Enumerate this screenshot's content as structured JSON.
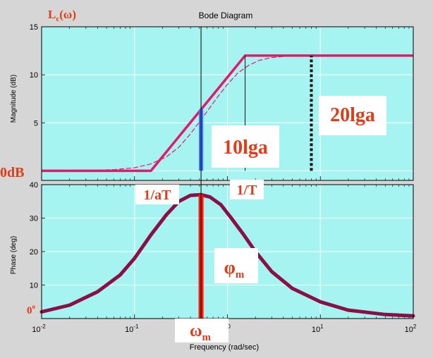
{
  "chart_data": [
    {
      "type": "line",
      "panel": "magnitude",
      "title": "Bode Diagram",
      "ylabel": "Magnitude (dB)",
      "xscale": "log",
      "xlim": [
        0.01,
        100
      ],
      "ylim": [
        -1,
        15
      ],
      "yticks": [
        {
          "value": 15,
          "label": "15"
        },
        {
          "value": 10,
          "label": "10"
        },
        {
          "value": 5,
          "label": "5"
        }
      ],
      "series": [
        {
          "name": "asymptote",
          "x": [
            0.01,
            0.15,
            1.55,
            100
          ],
          "y": [
            0,
            0,
            12,
            12
          ],
          "color": "#e6186a"
        },
        {
          "name": "actual",
          "x": [
            0.01,
            0.03,
            0.06,
            0.1,
            0.15,
            0.22,
            0.3,
            0.4,
            0.5,
            0.65,
            0.8,
            1.0,
            1.3,
            1.7,
            2.2,
            3.0,
            4.5,
            8,
            100
          ],
          "y": [
            0.0,
            0.03,
            0.12,
            0.32,
            0.72,
            1.45,
            2.45,
            3.85,
            5.1,
            6.6,
            7.8,
            9.0,
            10.2,
            11.0,
            11.5,
            11.8,
            11.95,
            12,
            12
          ],
          "color": "#e6186a"
        }
      ],
      "markers": [
        {
          "kind": "vline",
          "x": 0.52,
          "y0": 0,
          "y1": 6.4,
          "color": "#3b6fff"
        },
        {
          "kind": "vline_dotted",
          "x": 8,
          "y0": 0,
          "y1": 12,
          "color": "#111111"
        },
        {
          "kind": "vline_thin",
          "x": 1.55,
          "y0": 0,
          "y1": 12,
          "color": "#111111"
        }
      ],
      "annotations": [
        {
          "id": "lc",
          "text": "L",
          "sub": "c",
          "suffix": "(ω)"
        },
        {
          "id": "zero_db",
          "text": "0dB"
        },
        {
          "id": "ten_lga",
          "text": "10lga"
        },
        {
          "id": "twenty_lga",
          "text": "20lga"
        },
        {
          "id": "one_over_at",
          "text": "1/aT"
        },
        {
          "id": "one_over_t",
          "text": "1/T"
        }
      ]
    },
    {
      "type": "line",
      "panel": "phase",
      "ylabel": "Phase (deg)",
      "xlabel": "Frequency (rad/sec)",
      "xscale": "log",
      "xlim": [
        0.01,
        100
      ],
      "ylim": [
        0,
        40
      ],
      "yticks": [
        {
          "value": 40,
          "label": "40"
        },
        {
          "value": 30,
          "label": "30"
        },
        {
          "value": 20,
          "label": "20"
        },
        {
          "value": 10,
          "label": "10"
        },
        {
          "value": 0,
          "label": "0"
        }
      ],
      "xticks": [
        {
          "value": 0.01,
          "base": "10",
          "exp": "-2"
        },
        {
          "value": 0.1,
          "base": "10",
          "exp": "-1"
        },
        {
          "value": 1,
          "base": "10",
          "exp": "0"
        },
        {
          "value": 10,
          "base": "10",
          "exp": "1"
        },
        {
          "value": 100,
          "base": "10",
          "exp": "2"
        }
      ],
      "series": [
        {
          "name": "phase",
          "color": "#8b0e45",
          "x": [
            0.01,
            0.02,
            0.04,
            0.07,
            0.1,
            0.15,
            0.22,
            0.3,
            0.4,
            0.52,
            0.65,
            0.85,
            1.1,
            1.5,
            2.0,
            3.0,
            5.0,
            10,
            20,
            50,
            100
          ],
          "y": [
            2.0,
            4.0,
            8.0,
            13.0,
            18.0,
            25.0,
            31.0,
            35.0,
            36.8,
            37.0,
            36.3,
            34.0,
            30.0,
            25.0,
            20.0,
            14.0,
            9.0,
            5.0,
            2.5,
            1.2,
            0.8
          ]
        }
      ],
      "markers": [
        {
          "kind": "vline",
          "x": 0.52,
          "y0": 0,
          "y1": 37,
          "color": "#ff1a0a"
        }
      ],
      "annotations": [
        {
          "id": "phi_m",
          "text": "φ",
          "sub": "m"
        },
        {
          "id": "omega_m",
          "text": "ω",
          "sub": "m"
        },
        {
          "id": "zero_deg",
          "text": "0"
        }
      ]
    }
  ]
}
